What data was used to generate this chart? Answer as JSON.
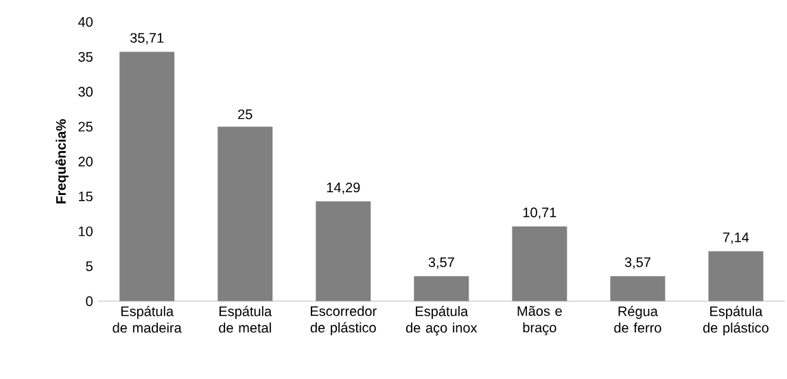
{
  "chart_data": {
    "type": "bar",
    "ylabel": "Frequência%",
    "categories": [
      "Espátula de madeira",
      "Espátula de metal",
      "Escorredor de plástico",
      "Espátula de aço inox",
      "Mãos e braço",
      "Régua de ferro",
      "Espátula de plástico"
    ],
    "values": [
      35.71,
      25,
      14.29,
      3.57,
      10.71,
      3.57,
      7.14
    ],
    "value_labels": [
      "35,71",
      "25",
      "14,29",
      "3,57",
      "10,71",
      "3,57",
      "7,14"
    ],
    "color": "#808080",
    "ylim": [
      0,
      40
    ],
    "yticks": [
      0,
      5,
      10,
      15,
      20,
      25,
      30,
      35,
      40
    ]
  }
}
